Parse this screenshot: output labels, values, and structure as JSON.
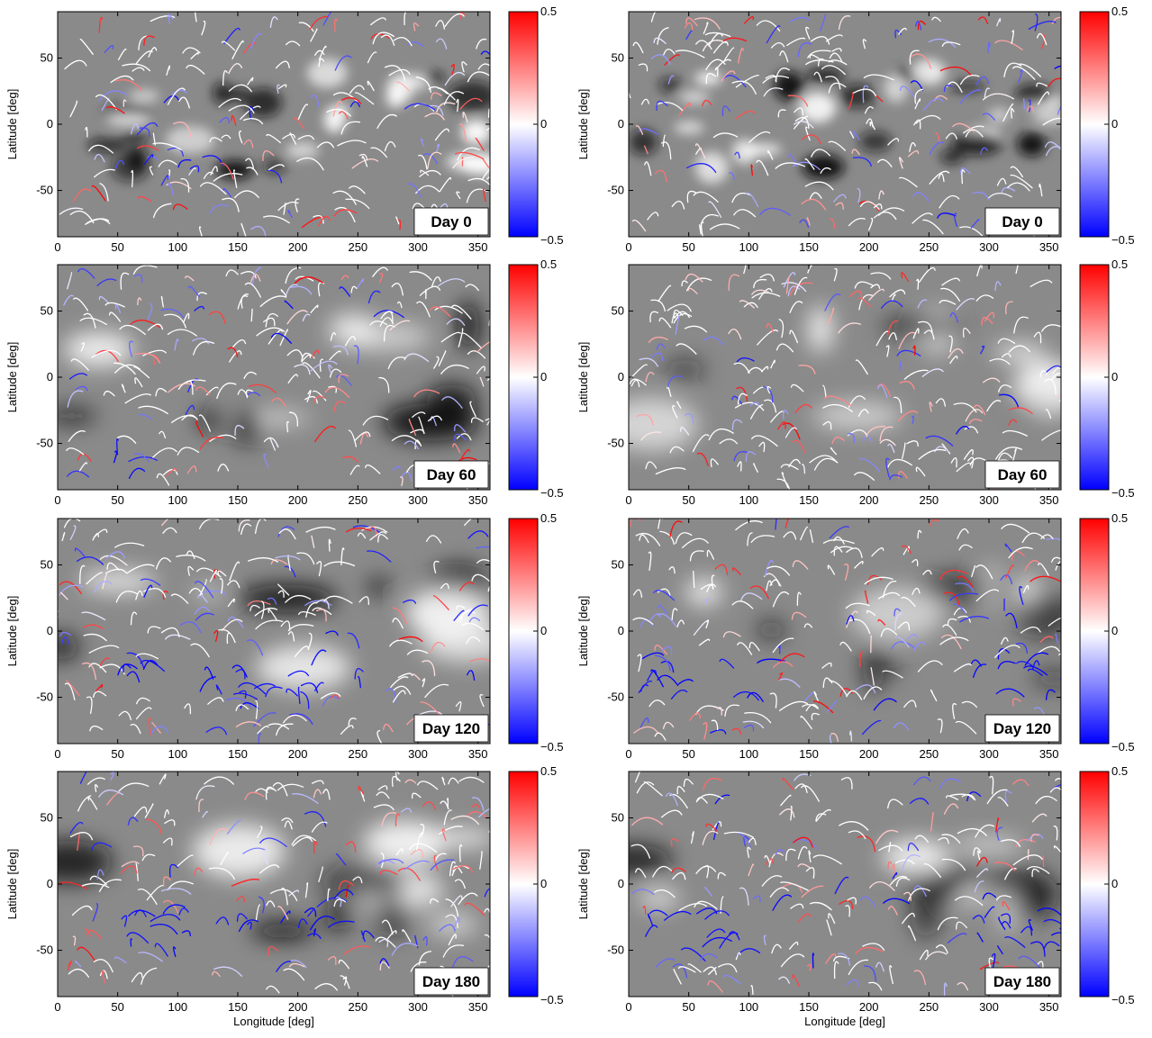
{
  "chart_data": [
    {
      "type": "heatmap",
      "column": "left",
      "day_label": "Day 0",
      "ylabel": "Latitude [deg]",
      "xlabel": "",
      "xlim": [
        0,
        360
      ],
      "ylim": [
        -85,
        85
      ],
      "xticks": [
        0,
        50,
        100,
        150,
        200,
        250,
        300,
        350
      ],
      "yticks": [
        -50,
        0,
        50
      ],
      "colorbar": {
        "min": -0.5,
        "max": 0.5,
        "ticks": [
          "0.5",
          "0",
          "−0.5"
        ]
      }
    },
    {
      "type": "heatmap",
      "column": "right",
      "day_label": "Day 0",
      "ylabel": "Latitude [deg]",
      "xlabel": "",
      "xlim": [
        0,
        360
      ],
      "ylim": [
        -85,
        85
      ],
      "xticks": [
        0,
        50,
        100,
        150,
        200,
        250,
        300,
        350
      ],
      "yticks": [
        -50,
        0,
        50
      ],
      "colorbar": {
        "min": -0.5,
        "max": 0.5,
        "ticks": [
          "0.5",
          "0",
          "−0.5"
        ]
      }
    },
    {
      "type": "heatmap",
      "column": "left",
      "day_label": "Day 60",
      "ylabel": "Latitude [deg]",
      "xlabel": "",
      "xlim": [
        0,
        360
      ],
      "ylim": [
        -85,
        85
      ],
      "xticks": [
        0,
        50,
        100,
        150,
        200,
        250,
        300,
        350
      ],
      "yticks": [
        -50,
        0,
        50
      ],
      "colorbar": {
        "min": -0.5,
        "max": 0.5,
        "ticks": [
          "0.5",
          "0",
          "−0.5"
        ]
      }
    },
    {
      "type": "heatmap",
      "column": "right",
      "day_label": "Day 60",
      "ylabel": "Latitude [deg]",
      "xlabel": "",
      "xlim": [
        0,
        360
      ],
      "ylim": [
        -85,
        85
      ],
      "xticks": [
        0,
        50,
        100,
        150,
        200,
        250,
        300,
        350
      ],
      "yticks": [
        -50,
        0,
        50
      ],
      "colorbar": {
        "min": -0.5,
        "max": 0.5,
        "ticks": [
          "0.5",
          "0",
          "−0.5"
        ]
      }
    },
    {
      "type": "heatmap",
      "column": "left",
      "day_label": "Day 120",
      "ylabel": "Latitude [deg]",
      "xlabel": "",
      "xlim": [
        0,
        360
      ],
      "ylim": [
        -85,
        85
      ],
      "xticks": [
        0,
        50,
        100,
        150,
        200,
        250,
        300,
        350
      ],
      "yticks": [
        -50,
        0,
        50
      ],
      "colorbar": {
        "min": -0.5,
        "max": 0.5,
        "ticks": [
          "0.5",
          "0",
          "−0.5"
        ]
      }
    },
    {
      "type": "heatmap",
      "column": "right",
      "day_label": "Day 120",
      "ylabel": "Latitude [deg]",
      "xlabel": "",
      "xlim": [
        0,
        360
      ],
      "ylim": [
        -85,
        85
      ],
      "xticks": [
        0,
        50,
        100,
        150,
        200,
        250,
        300,
        350
      ],
      "yticks": [
        -50,
        0,
        50
      ],
      "colorbar": {
        "min": -0.5,
        "max": 0.5,
        "ticks": [
          "0.5",
          "0",
          "−0.5"
        ]
      }
    },
    {
      "type": "heatmap",
      "column": "left",
      "day_label": "Day 180",
      "ylabel": "Latitude [deg]",
      "xlabel": "Longitude [deg]",
      "xlim": [
        0,
        360
      ],
      "ylim": [
        -85,
        85
      ],
      "xticks": [
        0,
        50,
        100,
        150,
        200,
        250,
        300,
        350
      ],
      "yticks": [
        -50,
        0,
        50
      ],
      "colorbar": {
        "min": -0.5,
        "max": 0.5,
        "ticks": [
          "0.5",
          "0",
          "−0.5"
        ]
      }
    },
    {
      "type": "heatmap",
      "column": "right",
      "day_label": "Day 180",
      "ylabel": "Latitude [deg]",
      "xlabel": "Longitude [deg]",
      "xlim": [
        0,
        360
      ],
      "ylim": [
        -85,
        85
      ],
      "xticks": [
        0,
        50,
        100,
        150,
        200,
        250,
        300,
        350
      ],
      "yticks": [
        -50,
        0,
        50
      ],
      "colorbar": {
        "min": -0.5,
        "max": 0.5,
        "ticks": [
          "0.5",
          "0",
          "−0.5"
        ]
      }
    }
  ],
  "colors": {
    "positive": "#ff0000",
    "zero": "#ffffff",
    "negative": "#0000ff",
    "background_dark": "#111111",
    "background_light": "#ffffff",
    "neutral_gray": "#8a8a8a"
  }
}
